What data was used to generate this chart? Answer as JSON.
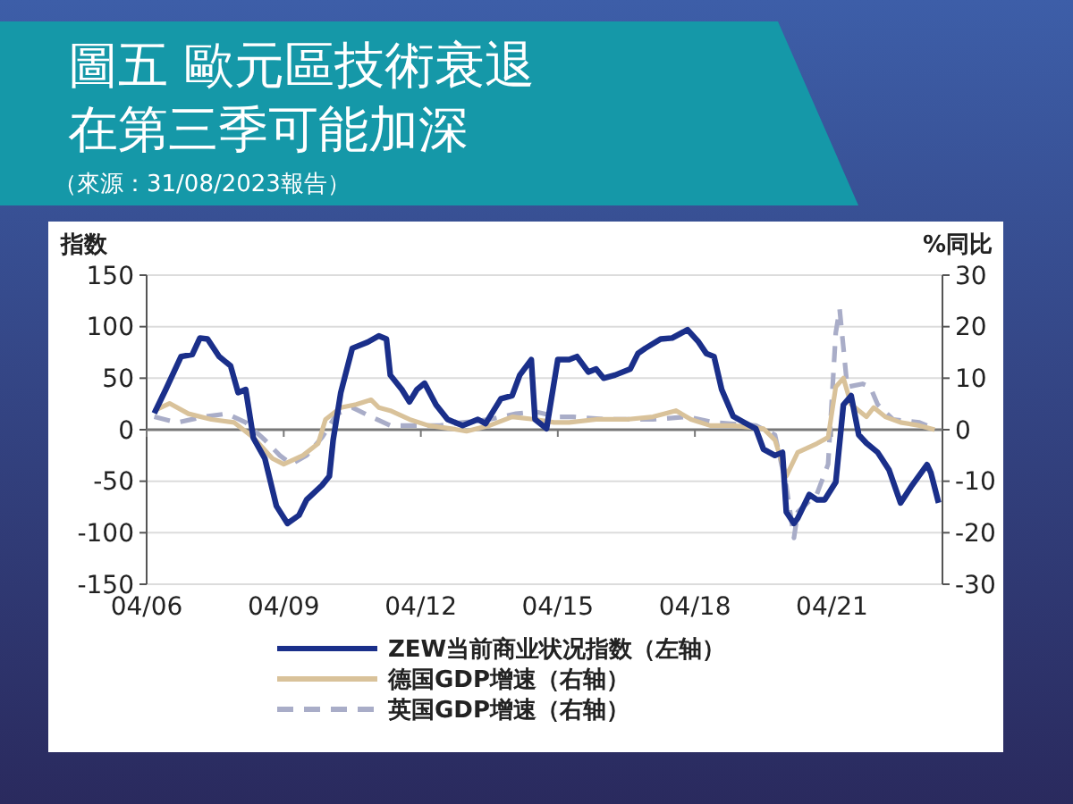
{
  "chart_data": {
    "type": "line",
    "title": "圖五 歐元區技術衰退在第三季可能加深",
    "subtitle": "（來源：31/08/2023報告）",
    "ylabel": "指数",
    "y2label": "%同比",
    "xlim": [
      "2006-04",
      "2023-09"
    ],
    "xticks": [
      {
        "value": "2006-04",
        "label": "04/06"
      },
      {
        "value": "2009-04",
        "label": "04/09"
      },
      {
        "value": "2012-04",
        "label": "04/12"
      },
      {
        "value": "2015-04",
        "label": "04/15"
      },
      {
        "value": "2018-04",
        "label": "04/18"
      },
      {
        "value": "2021-04",
        "label": "04/21"
      }
    ],
    "ylim": [
      -150,
      150
    ],
    "yticks": [
      -150,
      -100,
      -50,
      0,
      50,
      100,
      150
    ],
    "y2lim": [
      -30,
      30
    ],
    "y2ticks": [
      -30,
      -20,
      -10,
      0,
      10,
      20,
      30
    ],
    "grid": "y",
    "legend": "bottom",
    "series": [
      {
        "name": "ZEW当前商业状况指数（左轴）",
        "color": "#1a2f8a",
        "line_style": "solid",
        "x": [
          "2006-06",
          "2006-09",
          "2007-01",
          "2007-04",
          "2007-06",
          "2007-08",
          "2007-11",
          "2008-02",
          "2008-04",
          "2008-06",
          "2008-08",
          "2008-11",
          "2009-02",
          "2009-05",
          "2009-08",
          "2009-10",
          "2010-02",
          "2010-04",
          "2010-05",
          "2010-07",
          "2010-10",
          "2011-02",
          "2011-05",
          "2011-07",
          "2011-08",
          "2011-11",
          "2012-01",
          "2012-03",
          "2012-05",
          "2012-08",
          "2012-11",
          "2013-03",
          "2013-07",
          "2013-09",
          "2014-01",
          "2014-04",
          "2014-06",
          "2014-09",
          "2014-10",
          "2015-01",
          "2015-04",
          "2015-07",
          "2015-09",
          "2015-12",
          "2016-02",
          "2016-04",
          "2016-07",
          "2016-11",
          "2017-01",
          "2017-03",
          "2017-07",
          "2017-10",
          "2018-02",
          "2018-05",
          "2018-07",
          "2018-09",
          "2018-11",
          "2019-02",
          "2019-05",
          "2019-08",
          "2019-10",
          "2020-01",
          "2020-03",
          "2020-04",
          "2020-06",
          "2020-07",
          "2020-10",
          "2020-12",
          "2021-02",
          "2021-05",
          "2021-07",
          "2021-09",
          "2021-11",
          "2022-01",
          "2022-04",
          "2022-07",
          "2022-10",
          "2023-01",
          "2023-05",
          "2023-06",
          "2023-08"
        ],
        "values": [
          16,
          39,
          71,
          73,
          89,
          88,
          71,
          62,
          36,
          39,
          -8,
          -28,
          -74,
          -91,
          -83,
          -68,
          -54,
          -45,
          -10,
          36,
          79,
          85,
          91,
          88,
          53,
          39,
          27,
          39,
          45,
          24,
          10,
          4,
          10,
          6,
          30,
          33,
          53,
          68,
          10,
          1,
          68,
          68,
          71,
          56,
          59,
          50,
          53,
          59,
          74,
          79,
          88,
          89,
          97,
          85,
          74,
          71,
          39,
          13,
          7,
          1,
          -19,
          -25,
          -22,
          -80,
          -91,
          -86,
          -63,
          -68,
          -68,
          -51,
          24,
          33,
          -5,
          -13,
          -22,
          -39,
          -71,
          -54,
          -34,
          -42,
          -71
        ]
      },
      {
        "name": "德国GDP增速（右轴）",
        "color": "#d9c29a",
        "line_style": "solid",
        "axis": "y2",
        "x": [
          "2006-06",
          "2006-10",
          "2007-03",
          "2007-09",
          "2008-03",
          "2008-08",
          "2009-01",
          "2009-04",
          "2009-09",
          "2010-01",
          "2010-03",
          "2010-07",
          "2010-11",
          "2011-03",
          "2011-05",
          "2011-08",
          "2012-01",
          "2012-06",
          "2012-12",
          "2013-04",
          "2013-10",
          "2014-04",
          "2014-10",
          "2015-03",
          "2015-07",
          "2016-02",
          "2016-10",
          "2017-05",
          "2017-11",
          "2018-03",
          "2018-08",
          "2019-02",
          "2019-10",
          "2020-01",
          "2020-04",
          "2020-07",
          "2020-12",
          "2021-03",
          "2021-05",
          "2021-07",
          "2021-09",
          "2022-01",
          "2022-03",
          "2022-06",
          "2022-10",
          "2023-03",
          "2023-07"
        ],
        "values": [
          3.7,
          5.1,
          3.1,
          2,
          1.4,
          -1.5,
          -5.6,
          -6.7,
          -5,
          -2.7,
          2,
          4.3,
          4.9,
          5.8,
          4.3,
          3.7,
          2,
          0.8,
          0.2,
          -0.3,
          0.8,
          2.5,
          2,
          1.4,
          1.4,
          2,
          2,
          2.5,
          3.7,
          2,
          0.8,
          0.8,
          0.2,
          -2,
          -9,
          -4.4,
          -2.7,
          -1.5,
          8.3,
          10,
          4.9,
          2.5,
          4.3,
          2.5,
          1.4,
          0.8,
          0
        ]
      },
      {
        "name": "英国GDP增速（右轴）",
        "color": "#a9adc8",
        "line_style": "dashed",
        "axis": "y2",
        "x": [
          "2006-06",
          "2006-12",
          "2007-07",
          "2008-01",
          "2008-06",
          "2008-11",
          "2009-03",
          "2009-06",
          "2009-10",
          "2010-02",
          "2010-06",
          "2010-10",
          "2011-03",
          "2011-08",
          "2012-03",
          "2012-09",
          "2013-03",
          "2013-10",
          "2014-05",
          "2014-10",
          "2015-04",
          "2015-08",
          "2016-05",
          "2017-05",
          "2018-02",
          "2018-09",
          "2019-08",
          "2020-01",
          "2020-04",
          "2020-06",
          "2020-07",
          "2020-12",
          "2021-03",
          "2021-05",
          "2021-06",
          "2021-08",
          "2021-12",
          "2022-02",
          "2022-04",
          "2022-08",
          "2023-03",
          "2023-07"
        ],
        "values": [
          2.5,
          1.4,
          2.5,
          3.1,
          1.4,
          -2,
          -5,
          -6.7,
          -5,
          -1.5,
          3.1,
          4.3,
          2.5,
          0.8,
          0.8,
          0.8,
          1.4,
          2,
          3.1,
          3.5,
          2.5,
          2.5,
          2,
          2,
          2.5,
          1.4,
          0.8,
          -1,
          -11,
          -21,
          -16,
          -12.5,
          -6.7,
          18.8,
          23.4,
          8.3,
          8.9,
          8.3,
          4.9,
          2,
          1.4,
          0.2
        ]
      }
    ]
  }
}
